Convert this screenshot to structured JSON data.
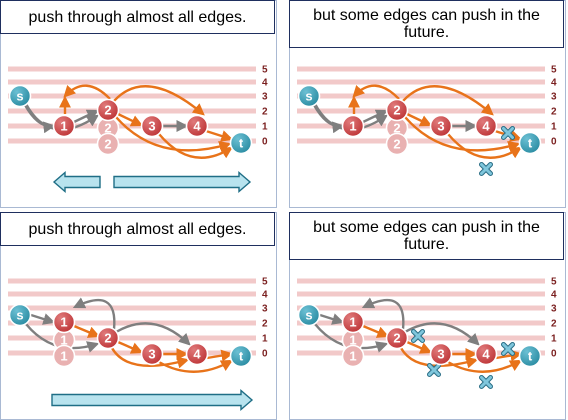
{
  "panels": [
    {
      "id": "tl",
      "title": "push through almost all edges.",
      "variant": "A",
      "show_x_marks": false,
      "bottom_arrows": "split"
    },
    {
      "id": "tr",
      "title": "but some edges can push in the future.",
      "variant": "A",
      "show_x_marks": true,
      "bottom_arrows": "none"
    },
    {
      "id": "bl",
      "title": "push through almost all edges.",
      "variant": "B",
      "show_x_marks": false,
      "bottom_arrows": "right"
    },
    {
      "id": "br",
      "title": "but some edges can push in the future.",
      "variant": "B",
      "show_x_marks": true,
      "bottom_arrows": "none"
    }
  ],
  "levels": [
    "5",
    "4",
    "3",
    "2",
    "1",
    "0"
  ],
  "node_labels": {
    "s": "s",
    "t": "t",
    "n1": "1",
    "n2": "2",
    "n3": "3",
    "n4": "4"
  },
  "colors": {
    "stripe": "#f2c9c9",
    "level_label": "#7a1f1f",
    "node_red": "#c0393b",
    "node_ghost": "#e9b1b1",
    "node_teal": "#2e8fa5",
    "node_teal_dark": "#1b6b81",
    "arrow_gray": "#7f7f7f",
    "arrow_orange": "#e8731a",
    "x_mark": "#7fc6dc",
    "big_arrow_fill": "#b8e3ee",
    "big_arrow_stroke": "#1f6e86"
  }
}
